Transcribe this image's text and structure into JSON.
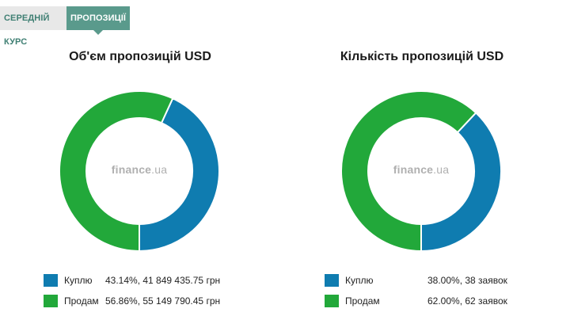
{
  "tabs": [
    {
      "label": "СЕРЕДНІЙ КУРС",
      "active": false
    },
    {
      "label": "ПРОПОЗИЦІЇ",
      "active": true
    }
  ],
  "watermark": {
    "brand": "finance",
    "suffix": ".ua"
  },
  "colors": {
    "buy": "#0f7cb0",
    "sell": "#22a83a"
  },
  "chart_data": [
    {
      "type": "pie",
      "title": "Об'єм пропозицій USD",
      "categories": [
        "Куплю",
        "Продам"
      ],
      "values": [
        43.14,
        56.86
      ],
      "legend": [
        {
          "name": "Куплю",
          "value": "43.14%, 41 849 435.75 грн"
        },
        {
          "name": "Продам",
          "value": "56.86%, 55 149 790.45 грн"
        }
      ]
    },
    {
      "type": "pie",
      "title": "Кількість пропозицій USD",
      "categories": [
        "Куплю",
        "Продам"
      ],
      "values": [
        38.0,
        62.0
      ],
      "legend": [
        {
          "name": "Куплю",
          "value": "38.00%, 38 заявок"
        },
        {
          "name": "Продам",
          "value": "62.00%, 62 заявок"
        }
      ]
    }
  ]
}
